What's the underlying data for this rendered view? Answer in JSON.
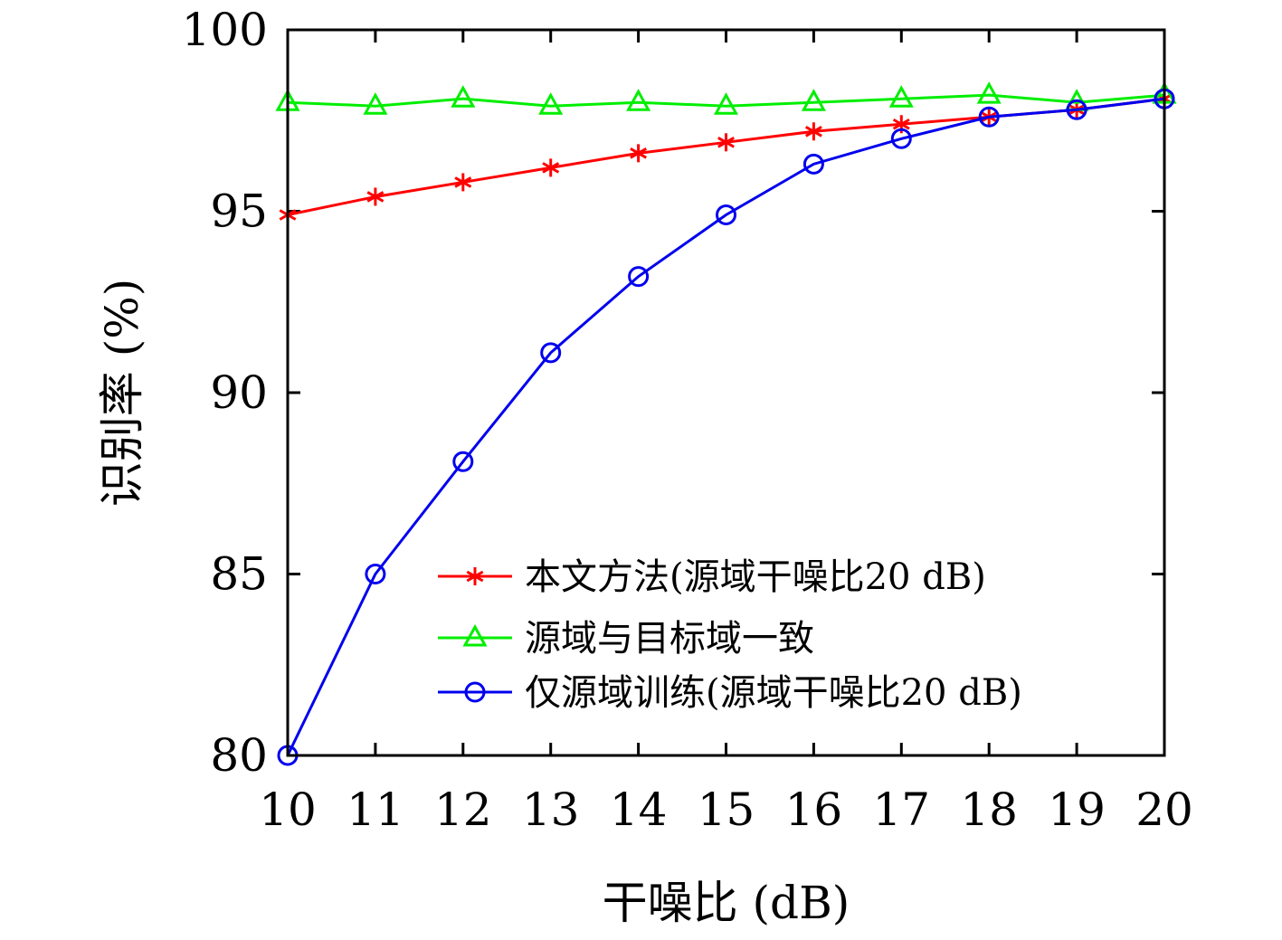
{
  "chart_data": {
    "type": "line",
    "title": "",
    "xlabel": "干噪比 (dB)",
    "ylabel": "识别率 (%)",
    "x": [
      10,
      11,
      12,
      13,
      14,
      15,
      16,
      17,
      18,
      19,
      20
    ],
    "xlim": [
      10,
      20
    ],
    "ylim": [
      80,
      100
    ],
    "xticks": [
      "10",
      "11",
      "12",
      "13",
      "14",
      "15",
      "16",
      "17",
      "18",
      "19",
      "20"
    ],
    "yticks": [
      "80",
      "85",
      "90",
      "95",
      "100"
    ],
    "grid": false,
    "legend_position": "bottom-right",
    "series": [
      {
        "name": "本文方法(源域干噪比20 dB)",
        "color": "#ff0000",
        "marker": "asterisk",
        "values": [
          94.9,
          95.4,
          95.8,
          96.2,
          96.6,
          96.9,
          97.2,
          97.4,
          97.6,
          97.8,
          98.1
        ]
      },
      {
        "name": "源域与目标域一致",
        "color": "#00ee00",
        "marker": "triangle",
        "values": [
          98.0,
          97.9,
          98.1,
          97.9,
          98.0,
          97.9,
          98.0,
          98.1,
          98.2,
          98.0,
          98.2
        ]
      },
      {
        "name": "仅源域训练(源域干噪比20 dB)",
        "color": "#0000ee",
        "marker": "circle",
        "values": [
          80.0,
          85.0,
          88.1,
          91.1,
          93.2,
          94.9,
          96.3,
          97.0,
          97.6,
          97.8,
          98.1
        ]
      }
    ]
  }
}
